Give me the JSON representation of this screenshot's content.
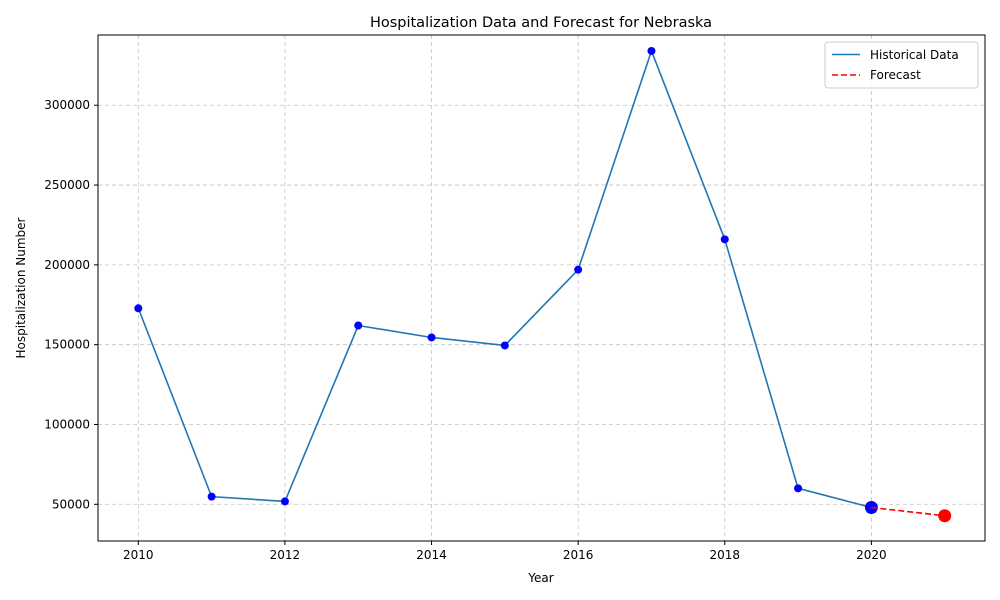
{
  "chart_data": {
    "type": "line",
    "title": "Hospitalization Data and Forecast for Nebraska",
    "xlabel": "Year",
    "ylabel": "Hospitalization Number",
    "xlim": [
      2009.45,
      2021.55
    ],
    "ylim": [
      27000,
      344000
    ],
    "xticks": [
      2010,
      2012,
      2014,
      2016,
      2018,
      2020
    ],
    "yticks": [
      50000,
      100000,
      150000,
      200000,
      250000,
      300000
    ],
    "grid": true,
    "legend_position": "top-right",
    "series": [
      {
        "name": "Historical Data",
        "color": "#1f77b4",
        "marker_color": "#0000ff",
        "line_style": "solid",
        "x": [
          2010,
          2011,
          2012,
          2013,
          2014,
          2015,
          2016,
          2017,
          2018,
          2019,
          2020
        ],
        "y": [
          172800,
          54800,
          51800,
          162000,
          154500,
          149500,
          197000,
          334000,
          216000,
          60000,
          48000
        ]
      },
      {
        "name": "Forecast",
        "color": "#ff0000",
        "marker_color": "#ff0000",
        "line_style": "dashed",
        "x": [
          2020,
          2021
        ],
        "y": [
          48000,
          42800
        ]
      }
    ]
  }
}
